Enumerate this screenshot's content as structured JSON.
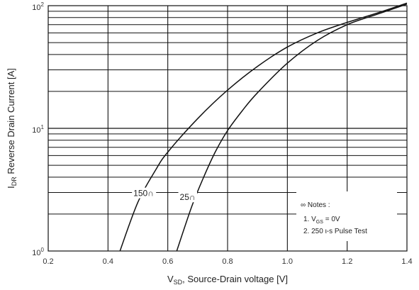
{
  "chart_data": {
    "type": "line",
    "xlabel": "V",
    "xlabel_sub": "SD",
    "xlabel_rest": ", Source-Drain voltage [V]",
    "ylabel": "I",
    "ylabel_sub": "DR",
    "ylabel_rest": " Reverse Drain Current [A]",
    "xlim": [
      0.2,
      1.4
    ],
    "ylim": [
      1,
      100
    ],
    "ylog": true,
    "grid": true,
    "x_ticks": [
      0.2,
      0.4,
      0.6,
      0.8,
      1.0,
      1.2,
      1.4
    ],
    "x_tick_labels": [
      "0.2",
      "0.4",
      "0.6",
      "0.8",
      "1.0",
      "1.2",
      "1.4"
    ],
    "y_tick_labels": [
      {
        "value": 1,
        "base": "10",
        "exp": "0"
      },
      {
        "value": 10,
        "base": "10",
        "exp": "1"
      },
      {
        "value": 100,
        "base": "10",
        "exp": "2"
      }
    ],
    "series": [
      {
        "name": "150∩",
        "x": [
          0.44,
          0.5,
          0.56,
          0.6,
          0.7,
          0.8,
          0.9,
          1.0,
          1.1,
          1.2,
          1.3,
          1.4
        ],
        "y": [
          1.0,
          2.5,
          4.6,
          6.4,
          12.0,
          20.5,
          32.0,
          46.0,
          60.0,
          73.0,
          87.0,
          105.0
        ]
      },
      {
        "name": "25∩",
        "x": [
          0.63,
          0.68,
          0.72,
          0.76,
          0.8,
          0.85,
          0.9,
          1.0,
          1.1,
          1.2,
          1.3,
          1.4
        ],
        "y": [
          1.0,
          2.3,
          4.0,
          6.5,
          9.6,
          14.0,
          19.5,
          34.0,
          52.0,
          70.0,
          85.0,
          103.0
        ]
      }
    ],
    "notes": {
      "heading": "∞ Notes :",
      "line1_pre": "1. V",
      "line1_sub": "GS",
      "line1_post": " = 0V",
      "line2": "2. 250 ι-s Pulse Test"
    },
    "colors": {
      "grid": "#111111",
      "curve": "#111111",
      "background": "#ffffff"
    }
  }
}
